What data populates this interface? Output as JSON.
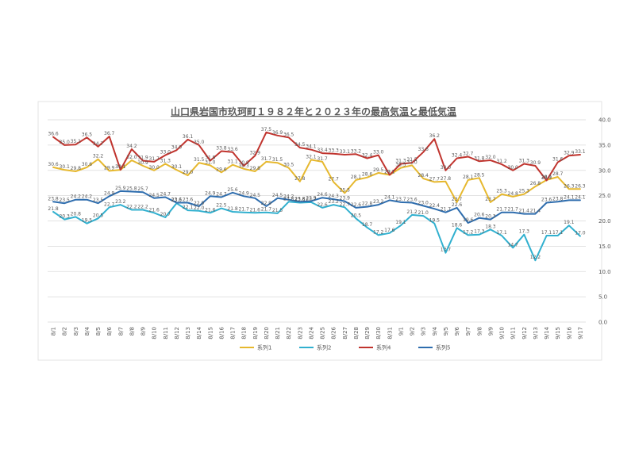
{
  "chart_data": {
    "type": "line",
    "title": "山口県岩国市玖珂町１９８２年と２０２３年の最高気温と最低気温",
    "xlabel": "",
    "ylabel": "",
    "ylim": [
      0,
      40
    ],
    "yticks": [
      "0.0",
      "5.0",
      "10.0",
      "15.0",
      "20.0",
      "25.0",
      "30.0",
      "35.0",
      "40.0"
    ],
    "grid": true,
    "legend_position": "bottom",
    "categories": [
      "8/1",
      "8/2",
      "8/3",
      "8/4",
      "8/5",
      "8/6",
      "8/7",
      "8/8",
      "8/9",
      "8/10",
      "8/11",
      "8/12",
      "8/13",
      "8/14",
      "8/15",
      "8/16",
      "8/17",
      "8/18",
      "8/19",
      "8/20",
      "8/21",
      "8/22",
      "8/23",
      "8/24",
      "8/25",
      "8/26",
      "8/27",
      "8/28",
      "8/29",
      "8/30",
      "8/31",
      "9/1",
      "9/2",
      "9/3",
      "9/4",
      "9/5",
      "9/6",
      "9/7",
      "9/8",
      "9/9",
      "9/10",
      "9/11",
      "9/12",
      "9/13",
      "9/14",
      "9/15",
      "9/16",
      "9/17"
    ],
    "series": [
      {
        "name": "系列1",
        "color": "#E6B82E",
        "values": [
          30.6,
          30.1,
          29.8,
          30.6,
          32.2,
          29.9,
          30.1,
          32.0,
          30.9,
          30.0,
          31.3,
          30.1,
          29.0,
          31.5,
          31.0,
          29.6,
          31.1,
          30.3,
          29.8,
          31.7,
          31.5,
          30.5,
          27.8,
          32.1,
          31.7,
          27.7,
          25.5,
          28.1,
          28.6,
          29.5,
          29.1,
          30.5,
          31.0,
          28.4,
          27.7,
          27.8,
          23.7,
          28.1,
          28.5,
          23.7,
          25.3,
          24.8,
          25.3,
          26.8,
          28.1,
          28.7,
          26.3,
          26.3
        ]
      },
      {
        "name": "系列2",
        "color": "#31B0CF",
        "values": [
          21.8,
          20.3,
          20.8,
          19.5,
          20.5,
          22.7,
          23.2,
          22.2,
          22.2,
          21.6,
          20.7,
          23.5,
          22.1,
          22.0,
          21.6,
          22.5,
          21.8,
          21.7,
          21.6,
          21.7,
          21.5,
          23.8,
          23.6,
          23.7,
          22.6,
          23.2,
          22.7,
          20.5,
          18.7,
          17.2,
          17.6,
          19.1,
          21.2,
          21.0,
          19.5,
          13.7,
          18.6,
          17.2,
          17.3,
          18.3,
          17.1,
          14.7,
          17.3,
          12.2,
          17.1,
          17.1,
          19.1,
          17.0
        ]
      },
      {
        "name": "系列4",
        "color": "#C0342E",
        "values": [
          36.6,
          35.0,
          35.1,
          36.5,
          34.7,
          36.7,
          30.1,
          34.2,
          31.9,
          31.7,
          33.0,
          34.0,
          36.1,
          35.0,
          31.9,
          33.8,
          33.6,
          30.9,
          32.9,
          37.5,
          36.9,
          36.5,
          34.5,
          34.1,
          33.4,
          33.3,
          33.1,
          33.2,
          32.4,
          33.0,
          29.1,
          31.3,
          31.5,
          33.6,
          36.2,
          30.0,
          32.4,
          32.7,
          31.8,
          32.0,
          31.2,
          30.0,
          31.3,
          30.9,
          28.0,
          31.6,
          32.9,
          33.1
        ]
      },
      {
        "name": "系列5",
        "color": "#2E6DAE",
        "values": [
          23.8,
          23.5,
          24.2,
          24.2,
          23.5,
          24.9,
          25.9,
          25.8,
          25.7,
          24.5,
          24.7,
          23.6,
          23.6,
          22.9,
          24.9,
          24.7,
          25.6,
          24.9,
          24.5,
          22.9,
          24.5,
          24.2,
          23.8,
          23.9,
          24.6,
          24.3,
          23.9,
          22.6,
          22.8,
          23.2,
          24.1,
          23.7,
          23.6,
          23.0,
          22.4,
          21.7,
          22.6,
          19.6,
          20.6,
          20.3,
          21.7,
          21.7,
          21.4,
          21.4,
          23.6,
          23.8,
          24.1,
          24.1
        ]
      }
    ],
    "data_labels": true
  }
}
